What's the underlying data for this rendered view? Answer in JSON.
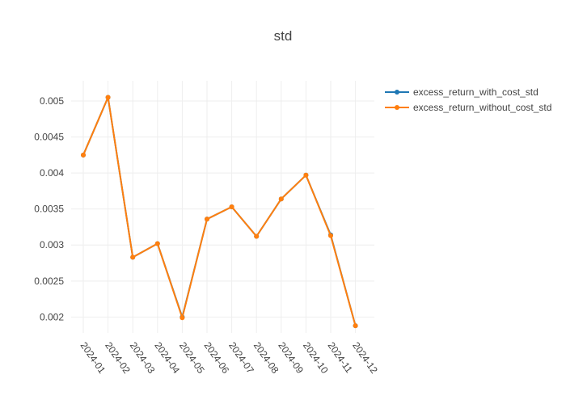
{
  "chart_data": {
    "type": "line",
    "title": "std",
    "xlabel": "",
    "ylabel": "",
    "categories": [
      "2024-01",
      "2024-02",
      "2024-03",
      "2024-04",
      "2024-05",
      "2024-06",
      "2024-07",
      "2024-08",
      "2024-09",
      "2024-10",
      "2024-11",
      "2024-12"
    ],
    "ylim": [
      0.00178,
      0.00528
    ],
    "yticks": [
      0.002,
      0.0025,
      0.003,
      0.0035,
      0.004,
      0.0045,
      0.005
    ],
    "ytick_labels": [
      "0.002",
      "0.0025",
      "0.003",
      "0.0035",
      "0.004",
      "0.0045",
      "0.005"
    ],
    "grid": true,
    "legend_position": "top-right",
    "series": [
      {
        "name": "excess_return_with_cost_std",
        "color": "#1f77b4",
        "values": [
          0.00425,
          0.00505,
          0.00283,
          0.00302,
          0.002,
          0.00336,
          0.00353,
          0.00312,
          0.00364,
          0.00397,
          0.00314,
          0.00188
        ]
      },
      {
        "name": "excess_return_without_cost_std",
        "color": "#ff7f0e",
        "values": [
          0.00425,
          0.00505,
          0.00283,
          0.00302,
          0.00199,
          0.00336,
          0.00353,
          0.00312,
          0.00364,
          0.00397,
          0.00313,
          0.00188
        ]
      }
    ]
  }
}
